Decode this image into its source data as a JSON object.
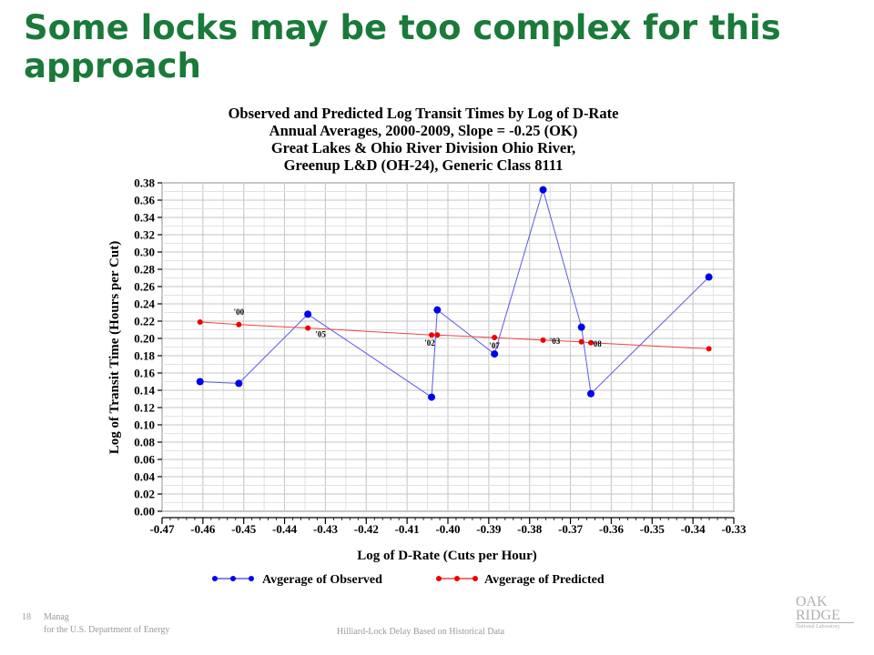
{
  "slide": {
    "title": "Some locks may be too complex for this approach",
    "page_number": "18",
    "footer_left_1": "Manag",
    "footer_left_2": "for the U.S. Department of Energy",
    "footer_center": "Hilliard-Lock Delay Based on Historical Data",
    "logo_line1": "OAK",
    "logo_line2": "RIDGE",
    "logo_line3": "National Laboratory"
  },
  "chart_data": {
    "type": "line",
    "title_lines": [
      "Observed and Predicted Log Transit Times by Log of D-Rate",
      "Annual Averages, 2000-2009, Slope = -0.25 (OK)",
      "Great Lakes & Ohio River Division Ohio River,",
      "Greenup L&D (OH-24), Generic Class 8111"
    ],
    "xlabel": "Log of D-Rate (Cuts per Hour)",
    "ylabel": "Log of Transit Time (Hours per Cut)",
    "xlim": [
      -0.47,
      -0.33
    ],
    "ylim": [
      0.0,
      0.38
    ],
    "x_ticks": [
      -0.47,
      -0.46,
      -0.45,
      -0.44,
      -0.43,
      -0.42,
      -0.41,
      -0.4,
      -0.39,
      -0.38,
      -0.37,
      -0.36,
      -0.35,
      -0.34,
      -0.33
    ],
    "y_ticks": [
      0.0,
      0.02,
      0.04,
      0.06,
      0.08,
      0.1,
      0.12,
      0.14,
      0.16,
      0.18,
      0.2,
      0.22,
      0.24,
      0.26,
      0.28,
      0.3,
      0.32,
      0.34,
      0.36,
      0.38
    ],
    "grid": true,
    "legend_position": "bottom",
    "series": [
      {
        "name": "Avgerage of Observed",
        "color": "#0000ee",
        "line_color": "#5a5ae6",
        "x": [
          -0.4607,
          -0.4512,
          -0.4343,
          -0.404,
          -0.4026,
          -0.3886,
          -0.3767,
          -0.3673,
          -0.365,
          -0.3361
        ],
        "y": [
          0.15,
          0.148,
          0.228,
          0.132,
          0.233,
          0.182,
          0.372,
          0.213,
          0.136,
          0.271
        ]
      },
      {
        "name": "Avgerage of Predicted",
        "color": "#ee0000",
        "line_color": "#ee4444",
        "x": [
          -0.4607,
          -0.4512,
          -0.4343,
          -0.404,
          -0.4026,
          -0.3886,
          -0.3767,
          -0.3673,
          -0.365,
          -0.3361
        ],
        "y": [
          0.219,
          0.216,
          0.212,
          0.204,
          0.204,
          0.201,
          0.198,
          0.196,
          0.195,
          0.188
        ]
      }
    ],
    "point_labels": [
      {
        "text": "'00",
        "x": -0.4512,
        "y": 0.216
      },
      {
        "text": "'05",
        "x": -0.4343,
        "y": 0.212
      },
      {
        "text": "'02",
        "x": -0.404,
        "y": 0.204
      },
      {
        "text": "'07",
        "x": -0.3886,
        "y": 0.201
      },
      {
        "text": "'03",
        "x": -0.3767,
        "y": 0.198
      },
      {
        "text": "'08",
        "x": -0.365,
        "y": 0.195
      }
    ]
  }
}
